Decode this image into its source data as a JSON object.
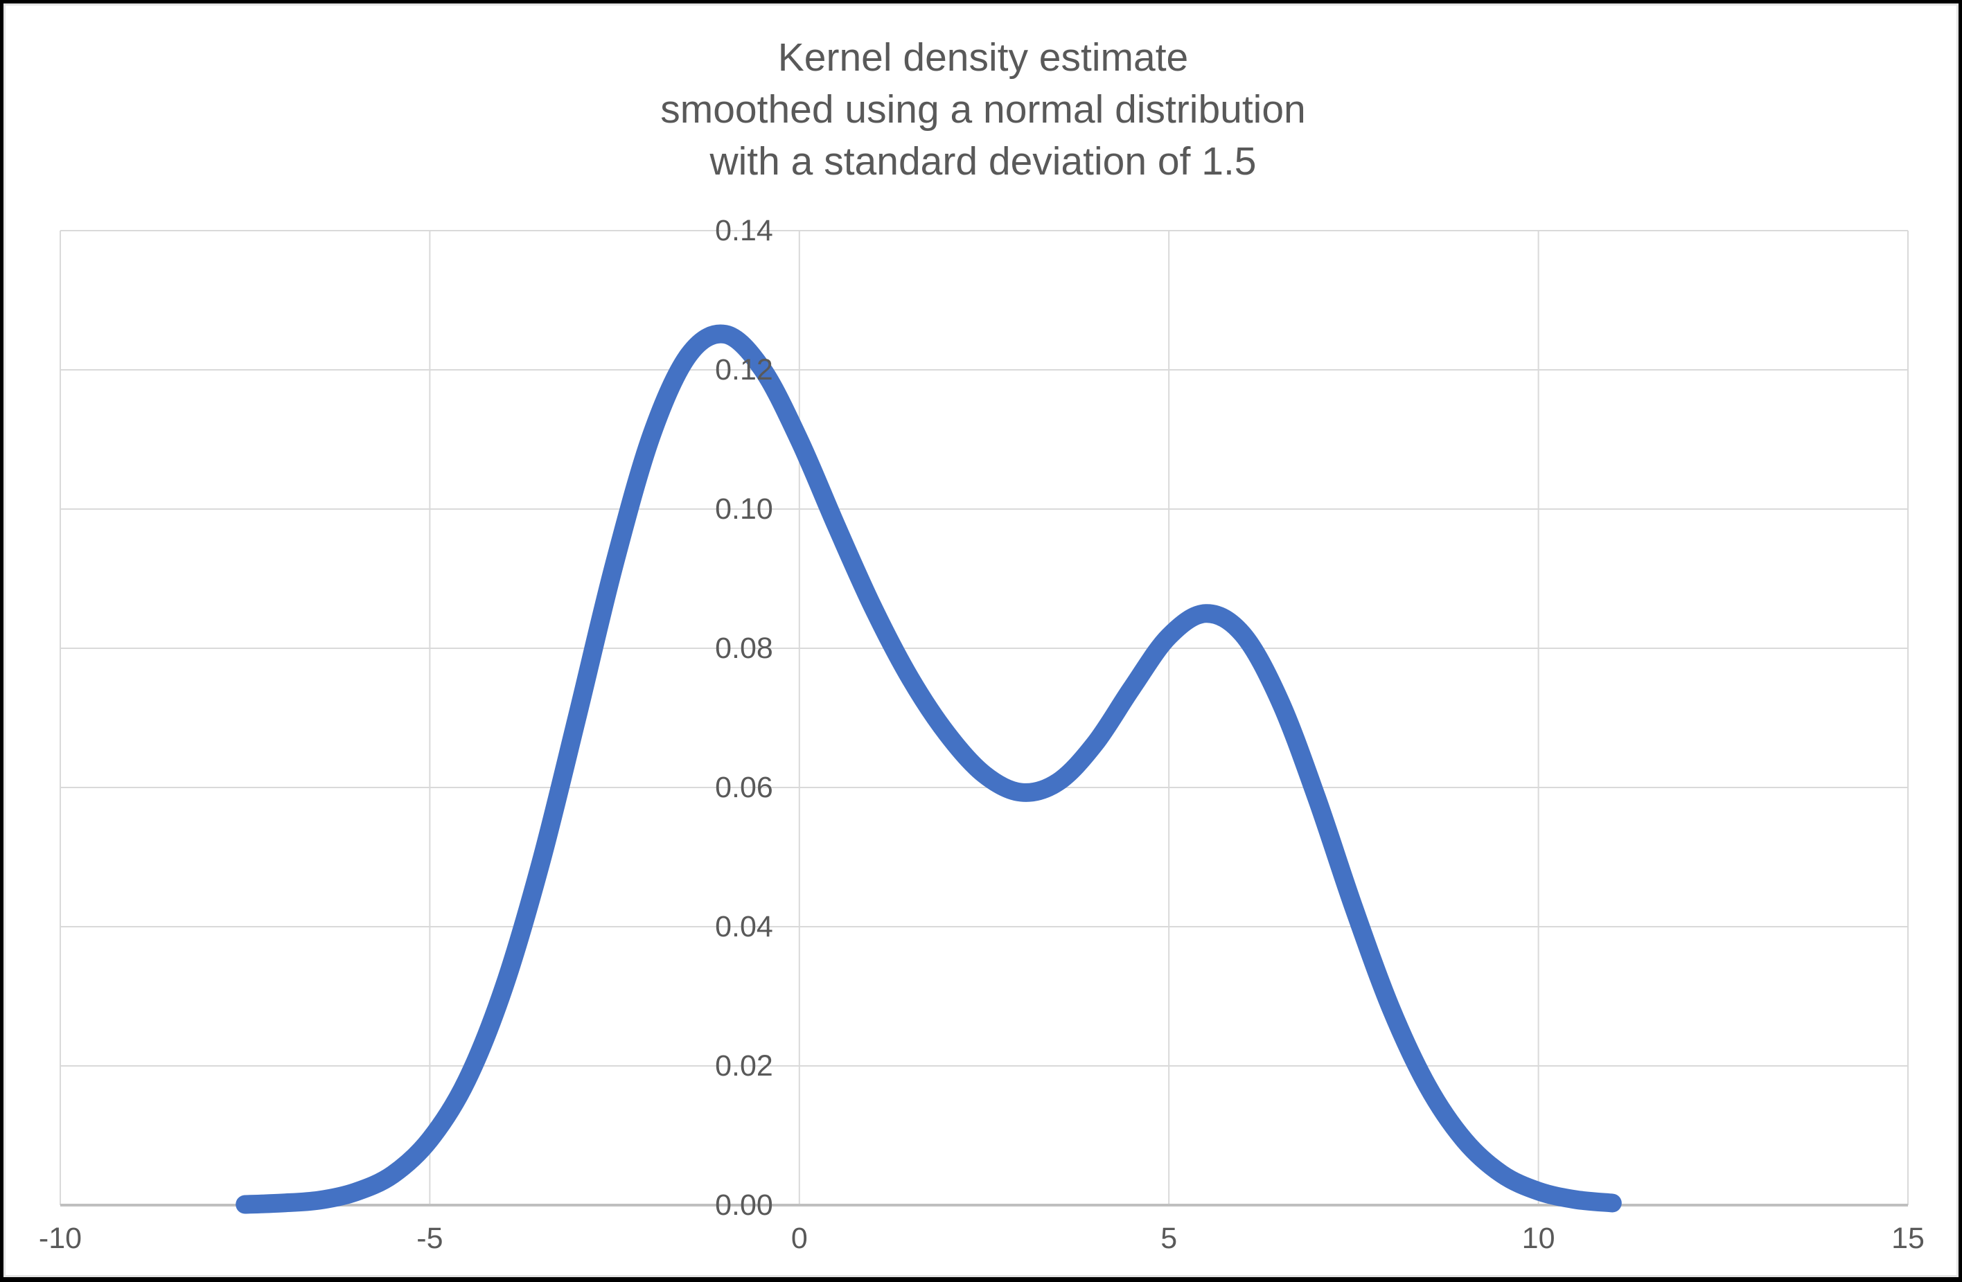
{
  "frame": {
    "background": "#000000",
    "inner_border": "#E4E4E4",
    "chart_background": "#FFFFFF"
  },
  "chart_data": {
    "type": "line",
    "title": "Kernel density estimate smoothed using a normal distribution with a standard deviation of 1.5",
    "title_lines": [
      "Kernel density estimate",
      "smoothed using a normal distribution",
      "with a standard deviation of 1.5"
    ],
    "xlabel": "",
    "ylabel": "",
    "xlim": [
      -10,
      15
    ],
    "ylim": [
      0,
      0.14
    ],
    "grid": true,
    "legend": "none",
    "x_ticks": {
      "values": [
        -10,
        -5,
        0,
        5,
        10,
        15
      ],
      "labels": [
        "-10",
        "-5",
        "0",
        "5",
        "10",
        "15"
      ]
    },
    "y_ticks": {
      "values": [
        0,
        0.02,
        0.04,
        0.06,
        0.08,
        0.1,
        0.12,
        0.14
      ],
      "labels": [
        "0.00",
        "0.02",
        "0.04",
        "0.06",
        "0.08",
        "0.10",
        "0.12",
        "0.14"
      ]
    },
    "styles": {
      "grid_color": "#D9D9D9",
      "axis_color": "#BFBFBF",
      "tick_label_color": "#595959",
      "title_color": "#595959"
    },
    "series": [
      {
        "name": "Kernel density estimate",
        "color": "#4472C4",
        "stroke_width": 27,
        "smooth": true,
        "points": [
          [
            -7.5,
            0.0001
          ],
          [
            -7.0,
            0.0003
          ],
          [
            -6.5,
            0.0007
          ],
          [
            -6.0,
            0.0019
          ],
          [
            -5.5,
            0.0044
          ],
          [
            -5.0,
            0.0094
          ],
          [
            -4.5,
            0.0179
          ],
          [
            -4.0,
            0.0312
          ],
          [
            -3.5,
            0.0491
          ],
          [
            -3.0,
            0.0704
          ],
          [
            -2.5,
            0.0922
          ],
          [
            -2.0,
            0.1106
          ],
          [
            -1.5,
            0.1221
          ],
          [
            -1.0,
            0.1251
          ],
          [
            -0.5,
            0.1201
          ],
          [
            0.0,
            0.1099
          ],
          [
            0.5,
            0.0976
          ],
          [
            1.0,
            0.0858
          ],
          [
            1.5,
            0.0757
          ],
          [
            2.0,
            0.0677
          ],
          [
            2.5,
            0.0619
          ],
          [
            3.0,
            0.0593
          ],
          [
            3.5,
            0.0608
          ],
          [
            4.0,
            0.0663
          ],
          [
            4.5,
            0.0743
          ],
          [
            5.0,
            0.0817
          ],
          [
            5.5,
            0.085
          ],
          [
            6.0,
            0.082
          ],
          [
            6.5,
            0.0725
          ],
          [
            7.0,
            0.0585
          ],
          [
            7.5,
            0.0428
          ],
          [
            8.0,
            0.0284
          ],
          [
            8.5,
            0.0171
          ],
          [
            9.0,
            0.0093
          ],
          [
            9.5,
            0.0045
          ],
          [
            10.0,
            0.002
          ],
          [
            10.5,
            0.0008
          ],
          [
            11.0,
            0.0003
          ]
        ]
      }
    ]
  }
}
